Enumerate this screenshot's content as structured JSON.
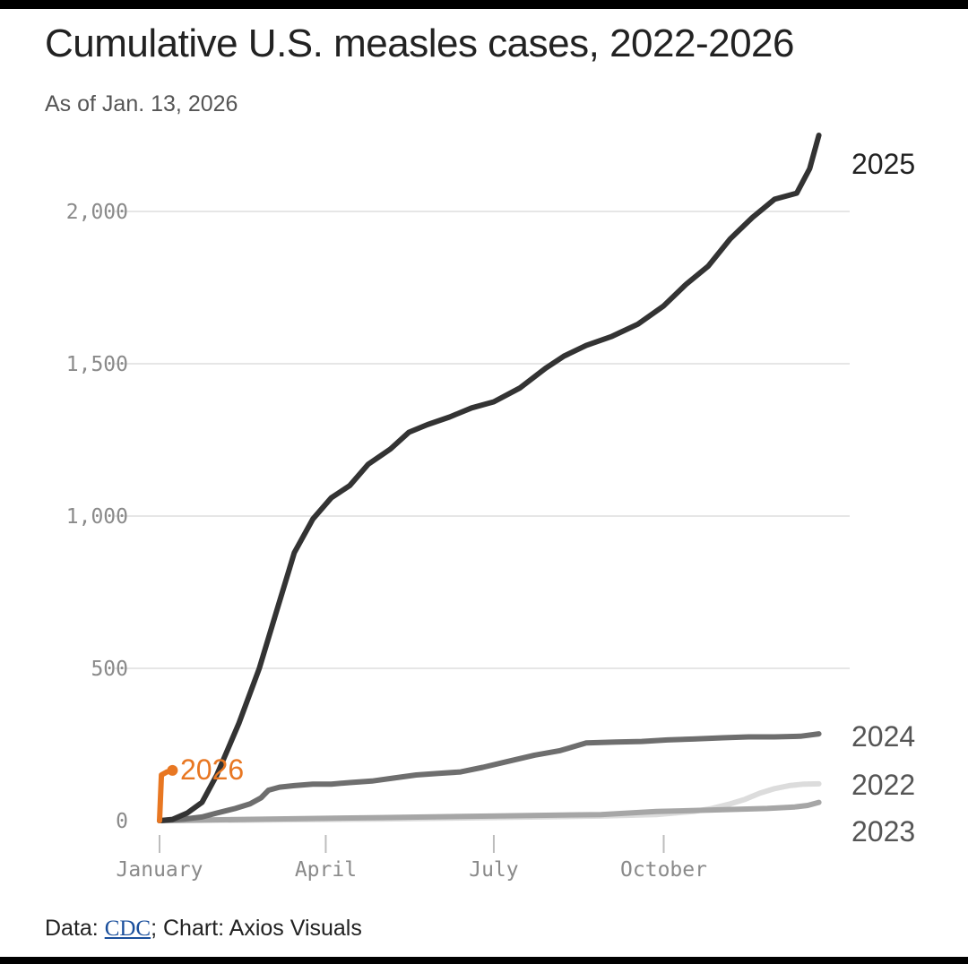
{
  "title": "Cumulative U.S. measles cases, 2022-2026",
  "subtitle": "As of Jan. 13, 2026",
  "footer": {
    "data_prefix": "Data: ",
    "source_link": "CDC",
    "chart_credit": "; Chart: Axios Visuals"
  },
  "colors": {
    "2025": "#333333",
    "2024": "#6e6e6e",
    "2022": "#dcdcdc",
    "2023": "#a6a6a6",
    "2026": "#e87722",
    "grid": "#e6e6e6",
    "axis_text": "#8a8a8a"
  },
  "chart_data": {
    "type": "line",
    "title": "Cumulative U.S. measles cases, 2022-2026",
    "subtitle": "As of Jan. 13, 2026",
    "xlabel": "",
    "ylabel": "",
    "x_unit": "day of year",
    "xlim": [
      1,
      365
    ],
    "ylim": [
      0,
      2200
    ],
    "y_ticks": [
      0,
      500,
      1000,
      1500,
      2000
    ],
    "y_tick_labels": [
      "0",
      "500",
      "1,000",
      "1,500",
      "2,000"
    ],
    "x_ticks": [
      1,
      91,
      182,
      274
    ],
    "x_tick_labels": [
      "January",
      "April",
      "July",
      "October"
    ],
    "grid": "horizontal",
    "legend": "direct labels at line ends",
    "series": [
      {
        "name": "2025",
        "x": [
          1,
          8,
          16,
          24,
          32,
          44,
          55,
          64,
          74,
          84,
          94,
          104,
          114,
          126,
          136,
          146,
          158,
          170,
          182,
          196,
          210,
          220,
          232,
          246,
          260,
          274,
          286,
          298,
          310,
          322,
          334,
          346,
          353,
          358
        ],
        "y": [
          0,
          4,
          25,
          60,
          150,
          320,
          500,
          680,
          880,
          990,
          1060,
          1100,
          1170,
          1220,
          1275,
          1300,
          1325,
          1355,
          1375,
          1420,
          1485,
          1525,
          1560,
          1590,
          1630,
          1690,
          1760,
          1820,
          1910,
          1980,
          2040,
          2060,
          2140,
          2250
        ]
      },
      {
        "name": "2024",
        "x": [
          1,
          14,
          24,
          32,
          42,
          50,
          56,
          60,
          66,
          74,
          84,
          94,
          104,
          116,
          128,
          140,
          152,
          164,
          176,
          190,
          204,
          218,
          232,
          248,
          262,
          276,
          290,
          306,
          320,
          334,
          348,
          358
        ],
        "y": [
          0,
          5,
          12,
          25,
          40,
          55,
          75,
          100,
          110,
          115,
          120,
          120,
          125,
          130,
          140,
          150,
          155,
          160,
          175,
          195,
          215,
          230,
          255,
          258,
          260,
          265,
          268,
          272,
          275,
          275,
          277,
          285
        ]
      },
      {
        "name": "2022",
        "x": [
          1,
          60,
          120,
          180,
          240,
          270,
          290,
          300,
          310,
          318,
          326,
          334,
          342,
          350,
          358
        ],
        "y": [
          0,
          2,
          5,
          10,
          15,
          20,
          30,
          40,
          55,
          70,
          90,
          105,
          115,
          120,
          121
        ]
      },
      {
        "name": "2023",
        "x": [
          1,
          60,
          120,
          180,
          240,
          270,
          300,
          330,
          345,
          352,
          358
        ],
        "y": [
          0,
          5,
          10,
          15,
          20,
          30,
          35,
          40,
          45,
          50,
          60
        ]
      },
      {
        "name": "2026",
        "x": [
          1,
          2,
          5,
          8
        ],
        "y": [
          0,
          150,
          160,
          165
        ]
      }
    ]
  }
}
